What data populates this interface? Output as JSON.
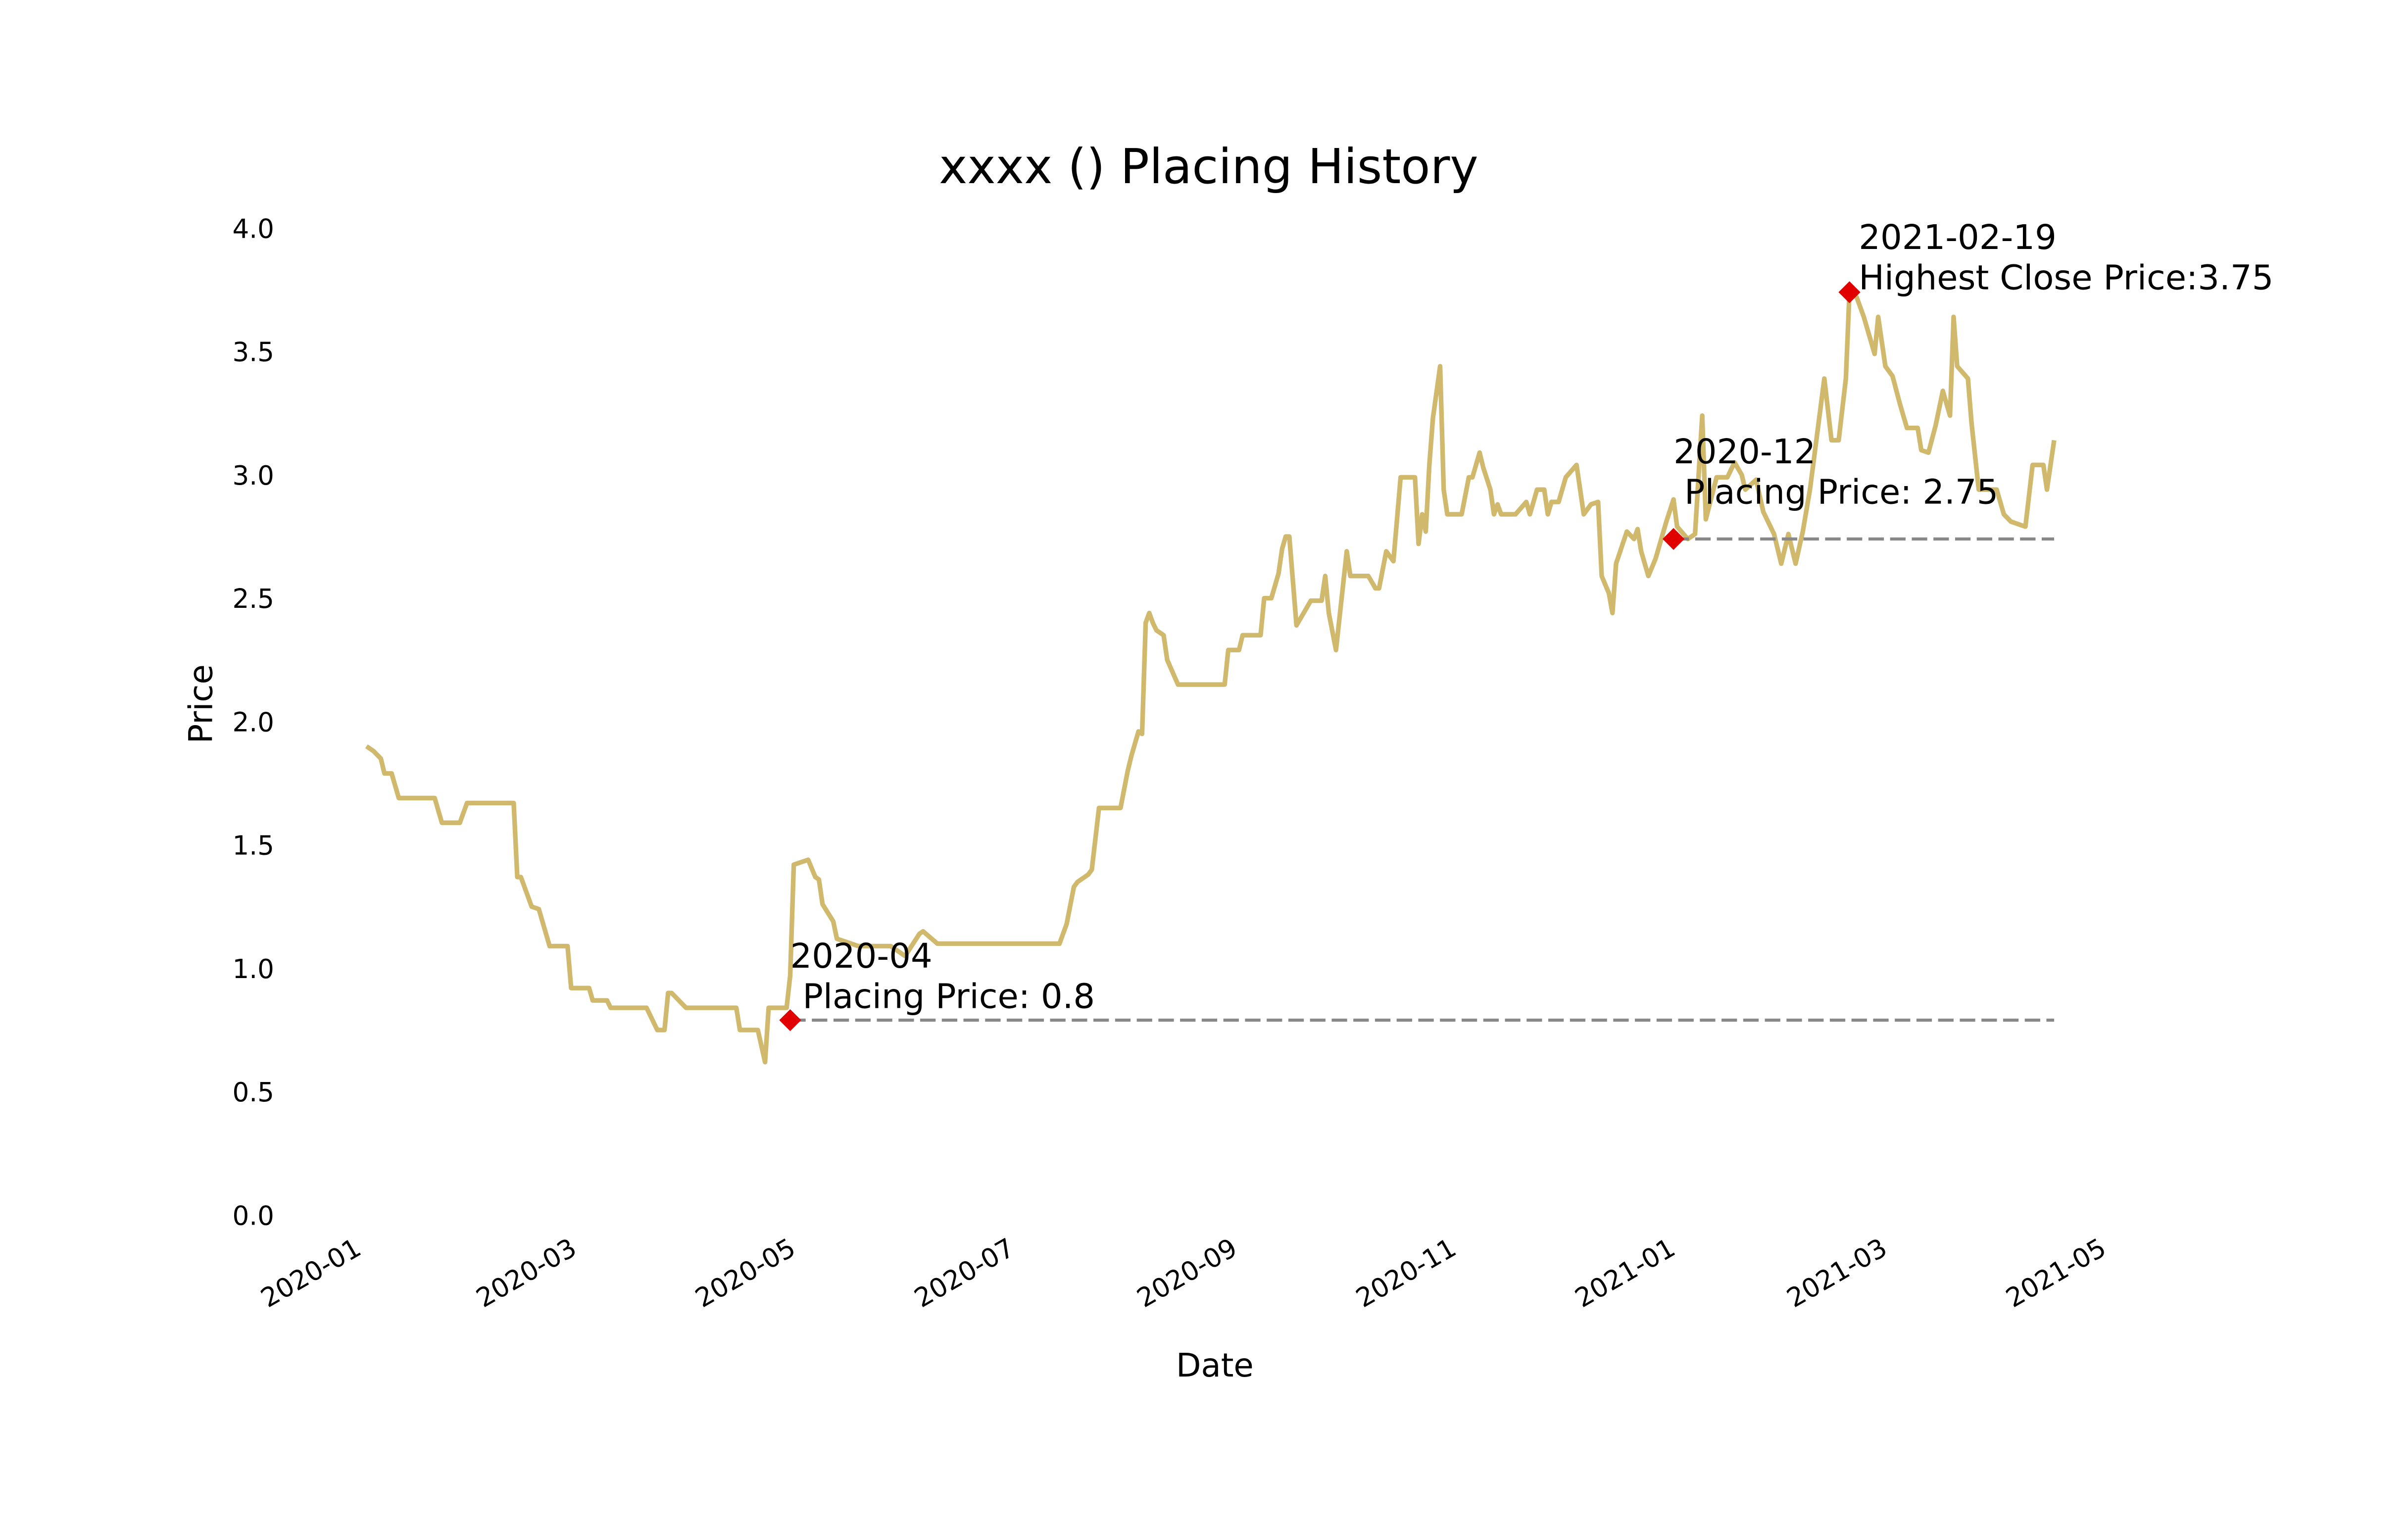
{
  "chart_data": {
    "type": "line",
    "title": "xxxx () Placing History",
    "x_label": "Date",
    "y_label": "Price",
    "color": "#d0b86c",
    "title_color": "#b8973a",
    "grid": false,
    "xlim": [
      "2020-01-01",
      "2021-05-01"
    ],
    "xticks": [
      {
        "value": "2020-01-01",
        "label": "2020-01"
      },
      {
        "value": "2020-03-01",
        "label": "2020-03"
      },
      {
        "value": "2020-05-01",
        "label": "2020-05"
      },
      {
        "value": "2020-07-01",
        "label": "2020-07"
      },
      {
        "value": "2020-09-01",
        "label": "2020-09"
      },
      {
        "value": "2020-11-01",
        "label": "2020-11"
      },
      {
        "value": "2021-01-01",
        "label": "2021-01"
      },
      {
        "value": "2021-03-01",
        "label": "2021-03"
      },
      {
        "value": "2021-05-01",
        "label": "2021-05"
      }
    ],
    "ylim": [
      0,
      4
    ],
    "yticks": [
      {
        "value": 0,
        "label": "0.0"
      },
      0.5,
      {
        "value": 1,
        "label": "1.0"
      },
      1.5,
      {
        "value": 2,
        "label": "2.0"
      },
      2.5,
      {
        "value": 3,
        "label": "3.0"
      },
      3.5,
      {
        "value": 4,
        "label": "4.0"
      }
    ],
    "x": [
      "2020-01-03",
      "2020-01-05",
      "2020-01-07",
      "2020-01-08",
      "2020-01-10",
      "2020-01-12",
      "2020-01-22",
      "2020-01-24",
      "2020-01-29",
      "2020-01-31",
      "2020-02-13",
      "2020-02-14",
      "2020-02-15",
      "2020-02-18",
      "2020-02-20",
      "2020-02-22",
      "2020-02-23",
      "2020-02-28",
      "2020-02-29",
      "2020-03-05",
      "2020-03-06",
      "2020-03-10",
      "2020-03-11",
      "2020-03-21",
      "2020-03-24",
      "2020-03-26",
      "2020-03-27",
      "2020-03-28",
      "2020-04-01",
      "2020-04-15",
      "2020-04-16",
      "2020-04-21",
      "2020-04-23",
      "2020-04-24",
      "2020-04-29",
      "2020-04-30",
      "2020-05-01",
      "2020-05-03",
      "2020-05-05",
      "2020-05-07",
      "2020-05-08",
      "2020-05-09",
      "2020-05-12",
      "2020-05-13",
      "2020-05-19",
      "2020-05-28",
      "2020-06-01",
      "2020-06-05",
      "2020-06-06",
      "2020-06-10",
      "2020-07-14",
      "2020-07-16",
      "2020-07-18",
      "2020-07-19",
      "2020-07-22",
      "2020-07-23",
      "2020-07-25",
      "2020-07-31",
      "2020-08-02",
      "2020-08-03",
      "2020-08-05",
      "2020-08-06",
      "2020-08-07",
      "2020-08-08",
      "2020-08-09",
      "2020-08-10",
      "2020-08-12",
      "2020-08-13",
      "2020-08-16",
      "2020-08-29",
      "2020-08-30",
      "2020-09-02",
      "2020-09-03",
      "2020-09-08",
      "2020-09-09",
      "2020-09-11",
      "2020-09-13",
      "2020-09-14",
      "2020-09-15",
      "2020-09-16",
      "2020-09-18",
      "2020-09-20",
      "2020-09-22",
      "2020-09-25",
      "2020-09-26",
      "2020-09-27",
      "2020-09-29",
      "2020-10-02",
      "2020-10-03",
      "2020-10-08",
      "2020-10-10",
      "2020-10-11",
      "2020-10-13",
      "2020-10-15",
      "2020-10-17",
      "2020-10-21",
      "2020-10-22",
      "2020-10-23",
      "2020-10-24",
      "2020-10-25",
      "2020-10-26",
      "2020-10-28",
      "2020-10-29",
      "2020-10-30",
      "2020-11-03",
      "2020-11-05",
      "2020-11-06",
      "2020-11-08",
      "2020-11-09",
      "2020-11-11",
      "2020-11-12",
      "2020-11-13",
      "2020-11-14",
      "2020-11-18",
      "2020-11-21",
      "2020-11-22",
      "2020-11-24",
      "2020-11-26",
      "2020-11-27",
      "2020-11-28",
      "2020-11-30",
      "2020-12-02",
      "2020-12-05",
      "2020-12-07",
      "2020-12-09",
      "2020-12-11",
      "2020-12-12",
      "2020-12-14",
      "2020-12-15",
      "2020-12-16",
      "2020-12-19",
      "2020-12-21",
      "2020-12-22",
      "2020-12-23",
      "2020-12-25",
      "2020-12-27",
      "2020-12-30",
      "2021-01-01",
      "2021-01-02",
      "2021-01-05",
      "2021-01-07",
      "2021-01-09",
      "2021-01-10",
      "2021-01-13",
      "2021-01-16",
      "2021-01-18",
      "2021-01-20",
      "2021-01-21",
      "2021-01-24",
      "2021-01-26",
      "2021-01-29",
      "2021-01-31",
      "2021-02-02",
      "2021-02-04",
      "2021-02-06",
      "2021-02-08",
      "2021-02-12",
      "2021-02-14",
      "2021-02-16",
      "2021-02-18",
      "2021-02-19",
      "2021-02-21",
      "2021-02-23",
      "2021-02-26",
      "2021-02-27",
      "2021-03-01",
      "2021-03-03",
      "2021-03-05",
      "2021-03-07",
      "2021-03-10",
      "2021-03-11",
      "2021-03-13",
      "2021-03-15",
      "2021-03-17",
      "2021-03-19",
      "2021-03-20",
      "2021-03-21",
      "2021-03-24",
      "2021-03-25",
      "2021-03-27",
      "2021-04-01",
      "2021-04-03",
      "2021-04-05",
      "2021-04-09",
      "2021-04-11",
      "2021-04-14",
      "2021-04-15",
      "2021-04-17"
    ],
    "values": [
      1.91,
      1.89,
      1.86,
      1.8,
      1.8,
      1.7,
      1.7,
      1.6,
      1.6,
      1.68,
      1.68,
      1.38,
      1.38,
      1.26,
      1.25,
      1.15,
      1.1,
      1.1,
      0.93,
      0.93,
      0.88,
      0.88,
      0.85,
      0.85,
      0.76,
      0.76,
      0.91,
      0.91,
      0.85,
      0.85,
      0.76,
      0.76,
      0.63,
      0.85,
      0.85,
      0.98,
      1.43,
      1.44,
      1.45,
      1.38,
      1.37,
      1.27,
      1.2,
      1.13,
      1.1,
      1.1,
      1.06,
      1.15,
      1.16,
      1.11,
      1.11,
      1.19,
      1.34,
      1.36,
      1.39,
      1.41,
      1.66,
      1.66,
      1.81,
      1.87,
      1.97,
      1.96,
      2.41,
      2.45,
      2.41,
      2.38,
      2.36,
      2.26,
      2.16,
      2.16,
      2.3,
      2.3,
      2.36,
      2.36,
      2.51,
      2.51,
      2.61,
      2.71,
      2.76,
      2.76,
      2.4,
      2.45,
      2.5,
      2.5,
      2.6,
      2.45,
      2.3,
      2.7,
      2.6,
      2.6,
      2.55,
      2.55,
      2.7,
      2.66,
      3.0,
      3.0,
      2.73,
      2.85,
      2.78,
      3.05,
      3.24,
      3.45,
      2.95,
      2.85,
      2.85,
      3.0,
      3.0,
      3.1,
      3.04,
      2.95,
      2.85,
      2.89,
      2.85,
      2.85,
      2.9,
      2.85,
      2.95,
      2.95,
      2.85,
      2.9,
      2.9,
      3.0,
      3.05,
      2.85,
      2.89,
      2.9,
      2.6,
      2.53,
      2.45,
      2.65,
      2.78,
      2.75,
      2.79,
      2.7,
      2.6,
      2.67,
      2.82,
      2.91,
      2.8,
      2.75,
      2.77,
      3.25,
      2.83,
      3.0,
      3.0,
      3.06,
      3.01,
      2.95,
      2.99,
      2.86,
      2.77,
      2.65,
      2.77,
      2.65,
      2.78,
      2.95,
      3.4,
      3.15,
      3.15,
      3.4,
      3.75,
      3.73,
      3.65,
      3.5,
      3.65,
      3.45,
      3.41,
      3.3,
      3.2,
      3.2,
      3.11,
      3.1,
      3.21,
      3.35,
      3.25,
      3.65,
      3.45,
      3.4,
      3.22,
      2.95,
      2.95,
      2.85,
      2.82,
      2.8,
      3.05,
      3.05,
      2.95,
      3.15
    ],
    "annotations": [
      {
        "x": "2020-04-30",
        "y": 0.8,
        "date_label": "2020-04",
        "text": "Placing Price: 0.8",
        "hline": true,
        "marker_color": "#e00000",
        "hline_color": "#888888",
        "text_color": "#000000"
      },
      {
        "x": "2021-01-01",
        "y": 2.75,
        "date_label": "2020-12",
        "text": "Placing Price: 2.75",
        "hline": true,
        "marker_color": "#e00000",
        "hline_color": "#888888",
        "text_color": "#000000"
      },
      {
        "x": "2021-02-19",
        "y": 3.75,
        "date_label": "2021-02-19",
        "text": "Highest Close Price:3.75",
        "hline": false,
        "marker_color": "#e00000",
        "hline_color": "#888888",
        "text_color": "#444444"
      }
    ]
  }
}
